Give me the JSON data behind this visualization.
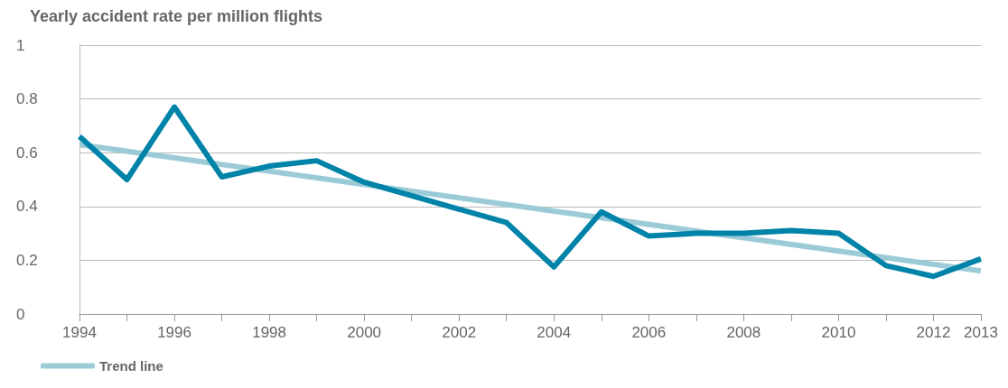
{
  "chart_data": {
    "type": "line",
    "title": "Yearly accident rate per million flights",
    "x": [
      1994,
      1995,
      1996,
      1997,
      1998,
      1999,
      2000,
      2001,
      2002,
      2003,
      2004,
      2005,
      2006,
      2007,
      2008,
      2009,
      2010,
      2011,
      2012,
      2013
    ],
    "series": [
      {
        "color": "#0083a8",
        "values": [
          0.66,
          0.5,
          0.77,
          0.51,
          0.55,
          0.57,
          0.49,
          0.44,
          0.39,
          0.34,
          0.175,
          0.38,
          0.29,
          0.3,
          0.3,
          0.31,
          0.3,
          0.18,
          0.14,
          0.205
        ]
      },
      {
        "name": "Trend line",
        "type": "line",
        "color": "#9ccbd8",
        "x": [
          1994,
          2013
        ],
        "values": [
          0.63,
          0.16
        ]
      }
    ],
    "xlim": [
      1994,
      2013
    ],
    "xticks": [
      1994,
      {
        "value": 1995,
        "label": null
      },
      1996,
      {
        "value": 1997,
        "label": null
      },
      1998,
      {
        "value": 1999,
        "label": null
      },
      2000,
      {
        "value": 2001,
        "label": null
      },
      2002,
      {
        "value": 2003,
        "label": null
      },
      2004,
      {
        "value": 2005,
        "label": null
      },
      2006,
      {
        "value": 2007,
        "label": null
      },
      2008,
      {
        "value": 2009,
        "label": null
      },
      2010,
      {
        "value": 2011,
        "label": null
      },
      2012,
      2013
    ],
    "ylim": [
      0,
      1
    ],
    "yticks": [
      0,
      0.2,
      0.4,
      0.6,
      0.8,
      1
    ],
    "grid": "y",
    "legend": "bottom left",
    "marker": "none",
    "line_style": "solid"
  }
}
